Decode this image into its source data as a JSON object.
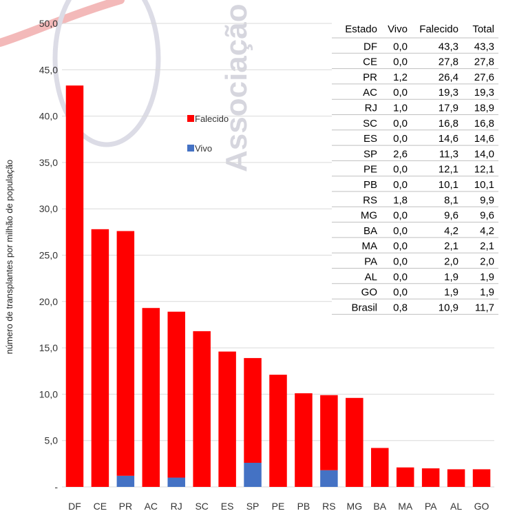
{
  "chart_data": {
    "type": "bar",
    "stacked": true,
    "categories": [
      "DF",
      "CE",
      "PR",
      "AC",
      "RJ",
      "SC",
      "ES",
      "SP",
      "PE",
      "PB",
      "RS",
      "MG",
      "BA",
      "MA",
      "PA",
      "AL",
      "GO"
    ],
    "series": [
      {
        "name": "Vivo",
        "color": "#4472c4",
        "values": [
          0.0,
          0.0,
          1.2,
          0.0,
          1.0,
          0.0,
          0.0,
          2.6,
          0.0,
          0.0,
          1.8,
          0.0,
          0.0,
          0.0,
          0.0,
          0.0,
          0.0
        ]
      },
      {
        "name": "Falecido",
        "color": "#ff0000",
        "values": [
          43.3,
          27.8,
          26.4,
          19.3,
          17.9,
          16.8,
          14.6,
          11.3,
          12.1,
          10.1,
          8.1,
          9.6,
          4.2,
          2.1,
          2.0,
          1.9,
          1.9
        ]
      }
    ],
    "ylabel": "número de transplantes por milhão de população",
    "ylim": [
      0,
      50
    ],
    "yticks": [
      {
        "value": 0,
        "label": "-"
      },
      {
        "value": 5,
        "label": "5,0"
      },
      {
        "value": 10,
        "label": "10,0"
      },
      {
        "value": 15,
        "label": "15,0"
      },
      {
        "value": 20,
        "label": "20,0"
      },
      {
        "value": 25,
        "label": "25,0"
      },
      {
        "value": 30,
        "label": "30,0"
      },
      {
        "value": 35,
        "label": "35,0"
      },
      {
        "value": 40,
        "label": "40,0"
      },
      {
        "value": 45,
        "label": "45,0"
      },
      {
        "value": 50,
        "label": "50,0"
      }
    ],
    "grid": true,
    "legend": {
      "placement": "upper-middle",
      "entries": [
        "Falecido",
        "Vivo"
      ]
    },
    "table": {
      "headers": [
        "Estado",
        "Vivo",
        "Falecido",
        "Total"
      ],
      "rows": [
        [
          "DF",
          "0,0",
          "43,3",
          "43,3"
        ],
        [
          "CE",
          "0,0",
          "27,8",
          "27,8"
        ],
        [
          "PR",
          "1,2",
          "26,4",
          "27,6"
        ],
        [
          "AC",
          "0,0",
          "19,3",
          "19,3"
        ],
        [
          "RJ",
          "1,0",
          "17,9",
          "18,9"
        ],
        [
          "SC",
          "0,0",
          "16,8",
          "16,8"
        ],
        [
          "ES",
          "0,0",
          "14,6",
          "14,6"
        ],
        [
          "SP",
          "2,6",
          "11,3",
          "14,0"
        ],
        [
          "PE",
          "0,0",
          "12,1",
          "12,1"
        ],
        [
          "PB",
          "0,0",
          "10,1",
          "10,1"
        ],
        [
          "RS",
          "1,8",
          "8,1",
          "9,9"
        ],
        [
          "MG",
          "0,0",
          "9,6",
          "9,6"
        ],
        [
          "BA",
          "0,0",
          "4,2",
          "4,2"
        ],
        [
          "MA",
          "0,0",
          "2,1",
          "2,1"
        ],
        [
          "PA",
          "0,0",
          "2,0",
          "2,0"
        ],
        [
          "AL",
          "0,0",
          "1,9",
          "1,9"
        ],
        [
          "GO",
          "0,0",
          "1,9",
          "1,9"
        ],
        [
          "Brasil",
          "0,8",
          "10,9",
          "11,7"
        ]
      ]
    }
  },
  "watermark": {
    "text": "Associação B"
  }
}
